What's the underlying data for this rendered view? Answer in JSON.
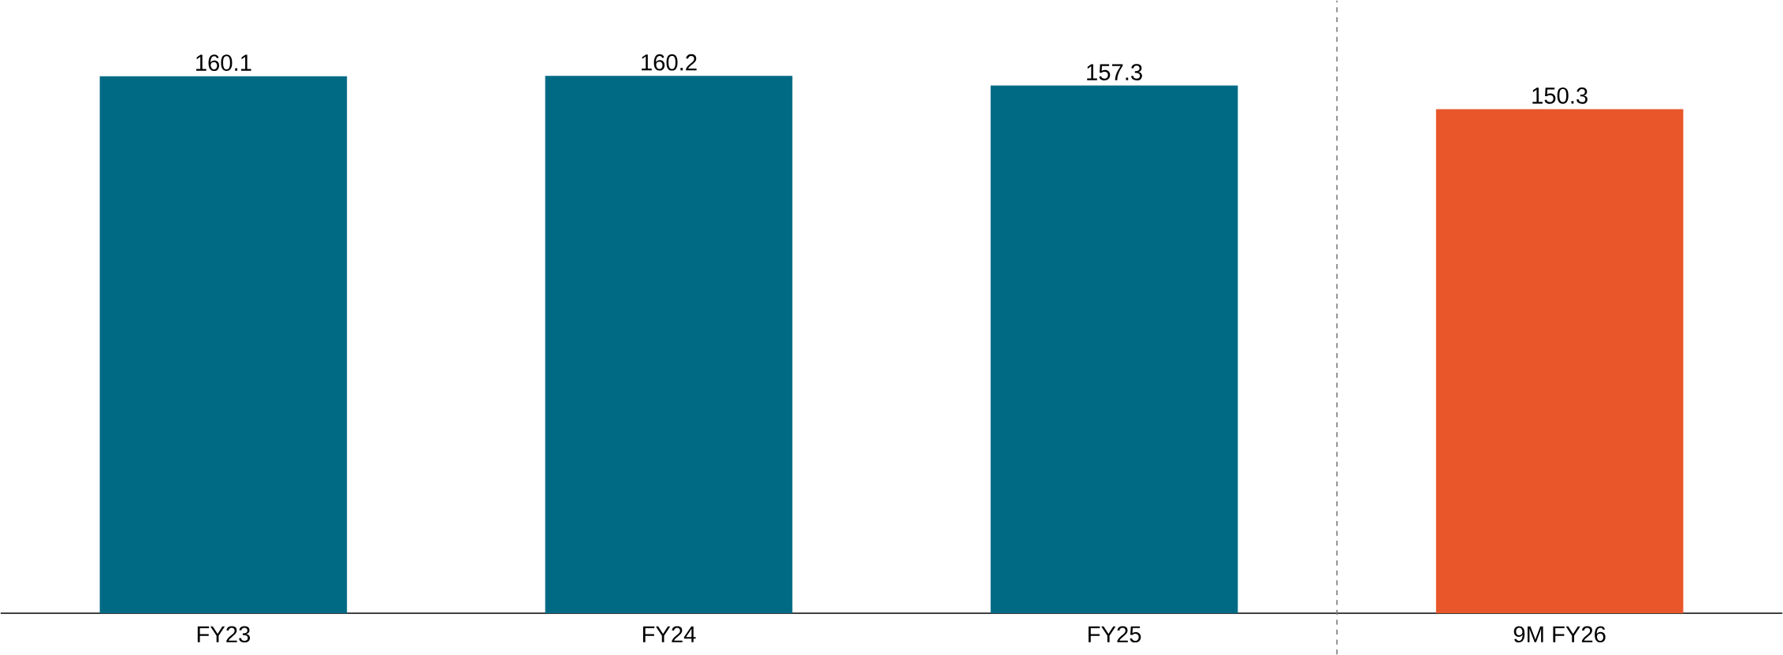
{
  "chart_data": {
    "type": "bar",
    "categories": [
      "FY23",
      "FY24",
      "FY25",
      "9M FY26"
    ],
    "values": [
      160.1,
      160.2,
      157.3,
      150.3
    ],
    "colors": [
      "#006a84",
      "#006a84",
      "#006a84",
      "#e8562a"
    ],
    "data_labels": true
  }
}
